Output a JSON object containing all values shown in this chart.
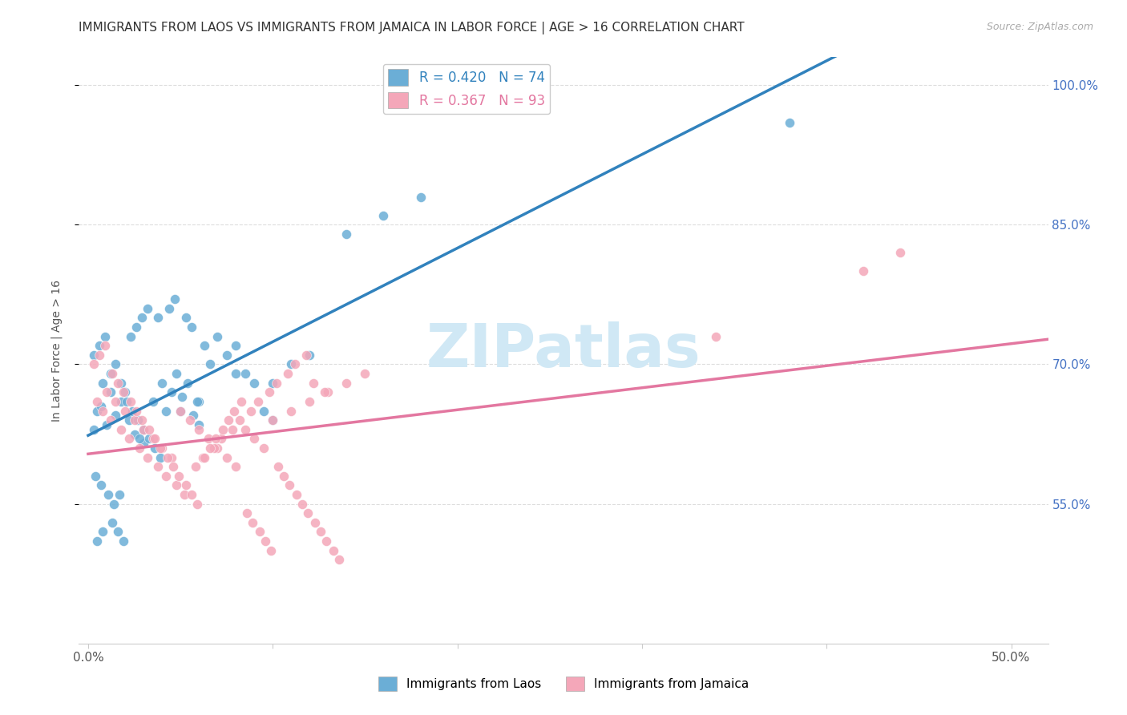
{
  "title": "IMMIGRANTS FROM LAOS VS IMMIGRANTS FROM JAMAICA IN LABOR FORCE | AGE > 16 CORRELATION CHART",
  "source": "Source: ZipAtlas.com",
  "ylabel": "In Labor Force | Age > 16",
  "xlim": [
    -0.005,
    0.52
  ],
  "ylim": [
    0.4,
    1.03
  ],
  "right_yticks": [
    0.55,
    0.7,
    0.85,
    1.0
  ],
  "right_yticklabels": [
    "55.0%",
    "70.0%",
    "85.0%",
    "100.0%"
  ],
  "blue_color": "#6baed6",
  "pink_color": "#f4a7b9",
  "blue_line_color": "#3182bd",
  "pink_line_color": "#e377a0",
  "dash_line_color": "#aaaaaa",
  "watermark": "ZIPatlas",
  "watermark_color": "#d0e8f5",
  "background_color": "#ffffff",
  "grid_color": "#dddddd",
  "blue_scatter_x": [
    0.012,
    0.008,
    0.005,
    0.018,
    0.022,
    0.003,
    0.007,
    0.015,
    0.01,
    0.025,
    0.03,
    0.035,
    0.02,
    0.028,
    0.04,
    0.05,
    0.06,
    0.08,
    0.1,
    0.12,
    0.003,
    0.006,
    0.009,
    0.012,
    0.015,
    0.018,
    0.021,
    0.024,
    0.027,
    0.03,
    0.033,
    0.036,
    0.039,
    0.042,
    0.045,
    0.048,
    0.051,
    0.054,
    0.057,
    0.06,
    0.063,
    0.066,
    0.07,
    0.075,
    0.08,
    0.085,
    0.09,
    0.095,
    0.1,
    0.11,
    0.004,
    0.007,
    0.011,
    0.014,
    0.017,
    0.005,
    0.008,
    0.013,
    0.016,
    0.019,
    0.023,
    0.026,
    0.029,
    0.032,
    0.038,
    0.044,
    0.047,
    0.053,
    0.056,
    0.059,
    0.14,
    0.16,
    0.18,
    0.38
  ],
  "blue_scatter_y": [
    0.67,
    0.68,
    0.65,
    0.66,
    0.64,
    0.63,
    0.655,
    0.645,
    0.635,
    0.625,
    0.615,
    0.66,
    0.67,
    0.62,
    0.68,
    0.65,
    0.66,
    0.69,
    0.68,
    0.71,
    0.71,
    0.72,
    0.73,
    0.69,
    0.7,
    0.68,
    0.66,
    0.65,
    0.64,
    0.63,
    0.62,
    0.61,
    0.6,
    0.65,
    0.67,
    0.69,
    0.665,
    0.68,
    0.645,
    0.635,
    0.72,
    0.7,
    0.73,
    0.71,
    0.72,
    0.69,
    0.68,
    0.65,
    0.64,
    0.7,
    0.58,
    0.57,
    0.56,
    0.55,
    0.56,
    0.51,
    0.52,
    0.53,
    0.52,
    0.51,
    0.73,
    0.74,
    0.75,
    0.76,
    0.75,
    0.76,
    0.77,
    0.75,
    0.74,
    0.66,
    0.84,
    0.86,
    0.88,
    0.96
  ],
  "pink_scatter_x": [
    0.01,
    0.015,
    0.02,
    0.025,
    0.03,
    0.035,
    0.04,
    0.045,
    0.05,
    0.055,
    0.06,
    0.065,
    0.07,
    0.075,
    0.08,
    0.085,
    0.09,
    0.095,
    0.1,
    0.11,
    0.12,
    0.13,
    0.14,
    0.15,
    0.005,
    0.008,
    0.012,
    0.018,
    0.022,
    0.028,
    0.032,
    0.038,
    0.042,
    0.048,
    0.052,
    0.058,
    0.062,
    0.068,
    0.072,
    0.078,
    0.082,
    0.088,
    0.092,
    0.098,
    0.102,
    0.108,
    0.112,
    0.118,
    0.122,
    0.128,
    0.003,
    0.006,
    0.009,
    0.013,
    0.016,
    0.019,
    0.023,
    0.026,
    0.029,
    0.033,
    0.036,
    0.039,
    0.043,
    0.046,
    0.049,
    0.053,
    0.056,
    0.059,
    0.063,
    0.066,
    0.069,
    0.073,
    0.076,
    0.079,
    0.083,
    0.086,
    0.089,
    0.093,
    0.096,
    0.099,
    0.103,
    0.106,
    0.109,
    0.113,
    0.116,
    0.119,
    0.123,
    0.126,
    0.129,
    0.133,
    0.136,
    0.34,
    0.42,
    0.44
  ],
  "pink_scatter_y": [
    0.67,
    0.66,
    0.65,
    0.64,
    0.63,
    0.62,
    0.61,
    0.6,
    0.65,
    0.64,
    0.63,
    0.62,
    0.61,
    0.6,
    0.59,
    0.63,
    0.62,
    0.61,
    0.64,
    0.65,
    0.66,
    0.67,
    0.68,
    0.69,
    0.66,
    0.65,
    0.64,
    0.63,
    0.62,
    0.61,
    0.6,
    0.59,
    0.58,
    0.57,
    0.56,
    0.59,
    0.6,
    0.61,
    0.62,
    0.63,
    0.64,
    0.65,
    0.66,
    0.67,
    0.68,
    0.69,
    0.7,
    0.71,
    0.68,
    0.67,
    0.7,
    0.71,
    0.72,
    0.69,
    0.68,
    0.67,
    0.66,
    0.65,
    0.64,
    0.63,
    0.62,
    0.61,
    0.6,
    0.59,
    0.58,
    0.57,
    0.56,
    0.55,
    0.6,
    0.61,
    0.62,
    0.63,
    0.64,
    0.65,
    0.66,
    0.54,
    0.53,
    0.52,
    0.51,
    0.5,
    0.59,
    0.58,
    0.57,
    0.56,
    0.55,
    0.54,
    0.53,
    0.52,
    0.51,
    0.5,
    0.49,
    0.73,
    0.8,
    0.82
  ]
}
